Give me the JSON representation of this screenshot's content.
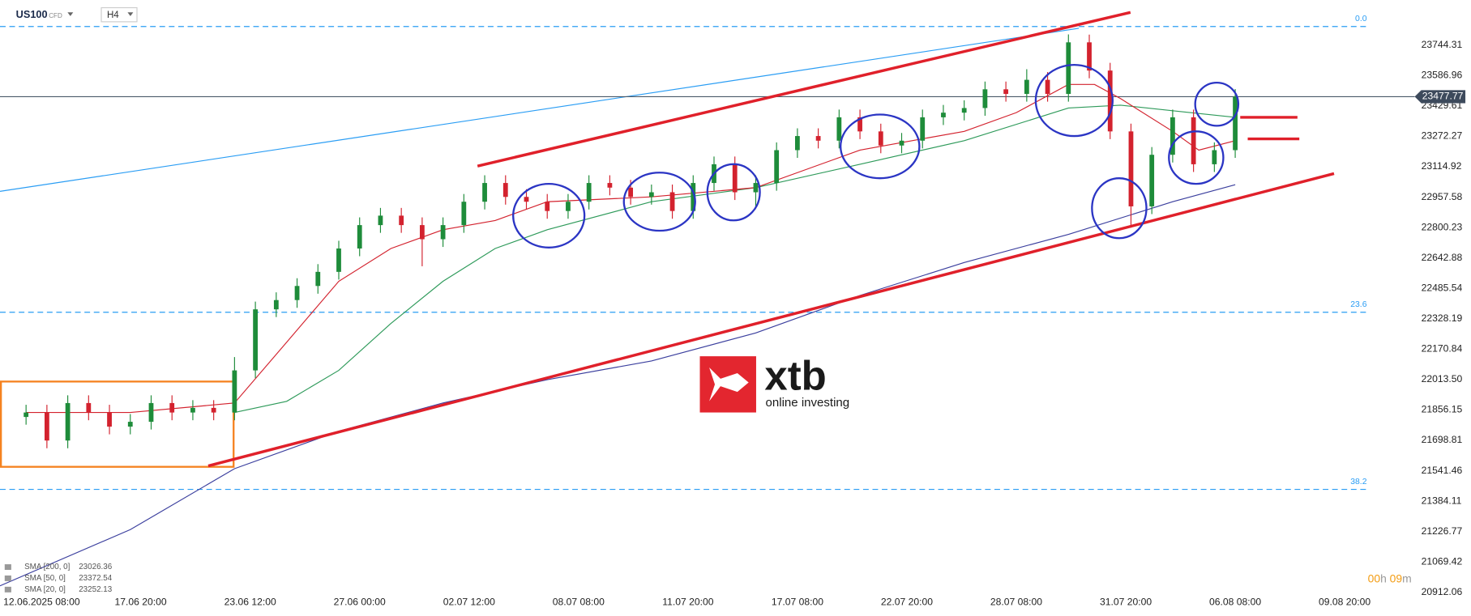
{
  "chart_data": {
    "type": "candlestick",
    "symbol": "US100",
    "instrument_type": "CFD",
    "timeframe": "H4",
    "up_color": "#1e8c3a",
    "down_color": "#d3222e",
    "x": [
      0,
      4,
      8,
      12,
      16,
      20,
      24,
      28,
      32,
      36,
      40,
      44,
      48,
      52,
      56,
      60,
      64,
      68,
      72,
      76,
      80,
      84,
      88,
      92,
      96,
      100,
      104,
      108,
      112,
      116,
      120,
      124,
      128,
      132,
      136,
      140,
      144,
      148,
      152,
      156,
      160,
      164,
      168,
      172,
      176,
      180,
      184,
      188,
      192,
      196,
      200,
      204,
      208,
      212,
      216,
      220,
      224,
      228,
      232
    ],
    "open": [
      21820,
      21843,
      21698,
      21892,
      21843,
      21770,
      21795,
      21892,
      21843,
      21867,
      21843,
      22061,
      22377,
      22425,
      22498,
      22571,
      22692,
      22813,
      22862,
      22813,
      22740,
      22813,
      22934,
      23031,
      22959,
      22934,
      22886,
      22934,
      23031,
      23007,
      22959,
      22983,
      22886,
      23031,
      23128,
      22983,
      23031,
      23201,
      23274,
      23250,
      23371,
      23298,
      23225,
      23250,
      23371,
      23395,
      23419,
      23516,
      23492,
      23565,
      23492,
      23759,
      23613,
      23298,
      22910,
      23177,
      23371,
      23128,
      23201
    ],
    "high": [
      21883,
      21883,
      21932,
      21932,
      21883,
      21835,
      21932,
      21932,
      21907,
      21907,
      22130,
      22417,
      22465,
      22538,
      22611,
      22732,
      22853,
      22902,
      22902,
      22853,
      22853,
      22974,
      23071,
      23071,
      22999,
      22974,
      22974,
      23071,
      23071,
      23047,
      23023,
      23023,
      23071,
      23168,
      23168,
      23071,
      23241,
      23314,
      23314,
      23411,
      23411,
      23338,
      23290,
      23411,
      23435,
      23459,
      23556,
      23556,
      23620,
      23605,
      23800,
      23799,
      23653,
      23338,
      23217,
      23411,
      23411,
      23241,
      23517
    ],
    "low": [
      21780,
      21658,
      21658,
      21803,
      21730,
      21730,
      21755,
      21803,
      21803,
      21803,
      21803,
      22021,
      22337,
      22385,
      22458,
      22531,
      22652,
      22773,
      22773,
      22600,
      22700,
      22773,
      22894,
      22919,
      22894,
      22846,
      22846,
      22894,
      22967,
      22919,
      22919,
      22846,
      22846,
      22991,
      22943,
      22900,
      22991,
      23161,
      23210,
      23210,
      23258,
      23185,
      23185,
      23210,
      23331,
      23355,
      23379,
      23452,
      23452,
      23452,
      23452,
      23573,
      23258,
      22800,
      22870,
      23137,
      23088,
      23088,
      23161
    ],
    "close": [
      21843,
      21698,
      21892,
      21843,
      21770,
      21795,
      21892,
      21843,
      21867,
      21843,
      22061,
      22377,
      22425,
      22498,
      22571,
      22692,
      22813,
      22862,
      22813,
      22740,
      22813,
      22934,
      23031,
      22959,
      22934,
      22886,
      22934,
      23031,
      23007,
      22959,
      22983,
      22886,
      23031,
      23128,
      22983,
      23031,
      23201,
      23274,
      23250,
      23371,
      23298,
      23225,
      23250,
      23371,
      23395,
      23419,
      23516,
      23492,
      23565,
      23492,
      23759,
      23613,
      23298,
      22910,
      23177,
      23371,
      23128,
      23201,
      23477.77
    ],
    "xlim": [
      -5,
      265
    ],
    "ylim": [
      20887.8,
      23977.1
    ],
    "xticks": [
      {
        "value": 3,
        "label": "12.06.2025  08:00"
      },
      {
        "value": 22,
        "label": "17.06  20:00"
      },
      {
        "value": 43,
        "label": "23.06  12:00"
      },
      {
        "value": 64,
        "label": "27.06  00:00"
      },
      {
        "value": 85,
        "label": "02.07  12:00"
      },
      {
        "value": 106,
        "label": "08.07  08:00"
      },
      {
        "value": 127,
        "label": "11.07  20:00"
      },
      {
        "value": 148,
        "label": "17.07  08:00"
      },
      {
        "value": 169,
        "label": "22.07  20:00"
      },
      {
        "value": 190,
        "label": "28.07  08:00"
      },
      {
        "value": 211,
        "label": "31.07  20:00"
      },
      {
        "value": 232,
        "label": "06.08  08:00"
      },
      {
        "value": 253,
        "label": "09.08  20:00"
      }
    ],
    "yticks": [
      23744.31,
      23586.96,
      23429.61,
      23272.27,
      23114.92,
      22957.58,
      22800.23,
      22642.88,
      22485.54,
      22328.19,
      22170.84,
      {
        "value": 22013.5,
        "label": "22013.50"
      },
      21856.15,
      21698.81,
      21541.46,
      21384.11,
      21226.77,
      21069.42,
      20912.06
    ],
    "sma": [
      {
        "name": "SMA [200, 0]",
        "last": "23026.36",
        "color": "#3b3f9e",
        "x": [
          -5,
          20,
          40,
          60,
          80,
          100,
          120,
          140,
          160,
          180,
          200,
          220,
          232
        ],
        "values": [
          20946,
          21237,
          21552,
          21746,
          21892,
          22013,
          22110,
          22255,
          22449,
          22619,
          22765,
          22934,
          23022
        ]
      },
      {
        "name": "SMA [50, 0]",
        "last": "23372.54",
        "color": "#2e9a5a",
        "x": [
          40,
          50,
          60,
          70,
          80,
          90,
          100,
          120,
          140,
          160,
          180,
          200,
          210,
          220,
          232
        ],
        "values": [
          21843,
          21901,
          22061,
          22304,
          22522,
          22692,
          22789,
          22934,
          23007,
          23128,
          23250,
          23419,
          23434,
          23405,
          23371
        ]
      },
      {
        "name": "SMA [20, 0]",
        "last": "23252.13",
        "color": "#d3222e",
        "x": [
          0,
          20,
          40,
          50,
          60,
          70,
          80,
          90,
          100,
          120,
          140,
          150,
          160,
          170,
          180,
          190,
          200,
          205,
          210,
          220,
          225,
          232
        ],
        "values": [
          21843,
          21843,
          21892,
          22207,
          22522,
          22692,
          22789,
          22837,
          22934,
          22959,
          23007,
          23104,
          23201,
          23250,
          23298,
          23395,
          23541,
          23541,
          23468,
          23298,
          23201,
          23250
        ]
      }
    ],
    "fib_levels": [
      {
        "label": "0.0",
        "value": 23841
      },
      {
        "label": "23.6",
        "value": 22362
      },
      {
        "label": "38.2",
        "value": 21445
      }
    ],
    "watermark": {
      "brand": "xtb",
      "tagline": "online investing"
    },
    "countdown": [
      "00",
      "h",
      " 09",
      "m"
    ]
  }
}
